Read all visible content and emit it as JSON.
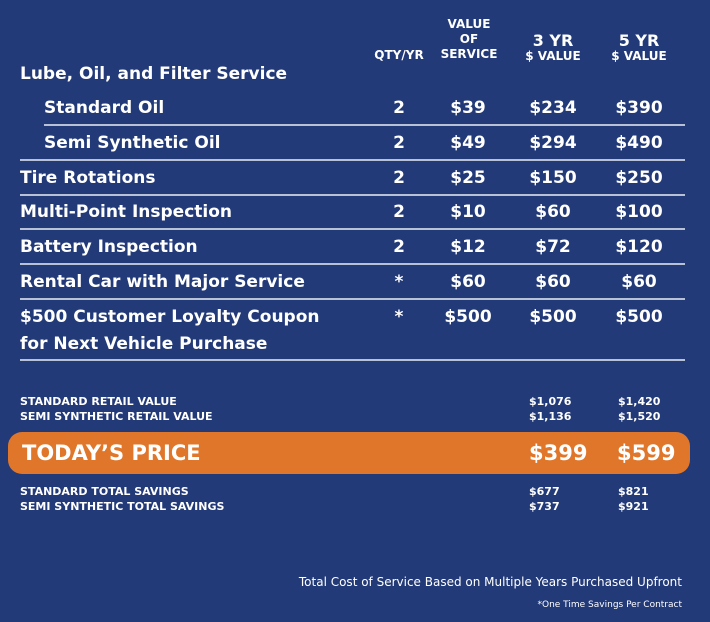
{
  "headers": {
    "qty": "QTY/YR",
    "value_line1": "VALUE",
    "value_line2": "OF",
    "value_line3": "SERVICE",
    "yr3_line1": "3 YR",
    "yr3_line2": "$ VALUE",
    "yr5_line1": "5 YR",
    "yr5_line2": "$ VALUE"
  },
  "section_title": "Lube, Oil, and Filter Service",
  "rows": [
    {
      "label": "Standard Oil",
      "qty": "2",
      "value": "$39",
      "yr3": "$234",
      "yr5": "$390"
    },
    {
      "label": "Semi Synthetic Oil",
      "qty": "2",
      "value": "$49",
      "yr3": "$294",
      "yr5": "$490"
    },
    {
      "label": "Tire Rotations",
      "qty": "2",
      "value": "$25",
      "yr3": "$150",
      "yr5": "$250"
    },
    {
      "label": "Multi-Point Inspection",
      "qty": "2",
      "value": "$10",
      "yr3": "$60",
      "yr5": "$100"
    },
    {
      "label": "Battery Inspection",
      "qty": "2",
      "value": "$12",
      "yr3": "$72",
      "yr5": "$120"
    },
    {
      "label": "Rental Car with Major Service",
      "qty": "*",
      "value": "$60",
      "yr3": "$60",
      "yr5": "$60"
    },
    {
      "label": "$500 Customer Loyalty Coupon",
      "label2": "for Next Vehicle Purchase",
      "qty": "*",
      "value": "$500",
      "yr3": "$500",
      "yr5": "$500"
    }
  ],
  "retail": [
    {
      "label": "STANDARD RETAIL VALUE",
      "yr3": "$1,076",
      "yr5": "$1,420"
    },
    {
      "label": "SEMI SYNTHETIC RETAIL VALUE",
      "yr3": "$1,136",
      "yr5": "$1,520"
    }
  ],
  "today": {
    "label": "TODAY’S PRICE",
    "yr3": "$399",
    "yr5": "$599",
    "color": "#e0762a"
  },
  "savings": [
    {
      "label": "STANDARD TOTAL SAVINGS",
      "yr3": "$677",
      "yr5": "$821"
    },
    {
      "label": "SEMI SYNTHETIC TOTAL SAVINGS",
      "yr3": "$737",
      "yr5": "$921"
    }
  ],
  "footer": {
    "note": "Total Cost of Service Based on Multiple Years Purchased Upfront",
    "footnote": "*One Time Savings Per Contract"
  },
  "colors": {
    "background": "#233a78",
    "accent": "#e0762a"
  }
}
